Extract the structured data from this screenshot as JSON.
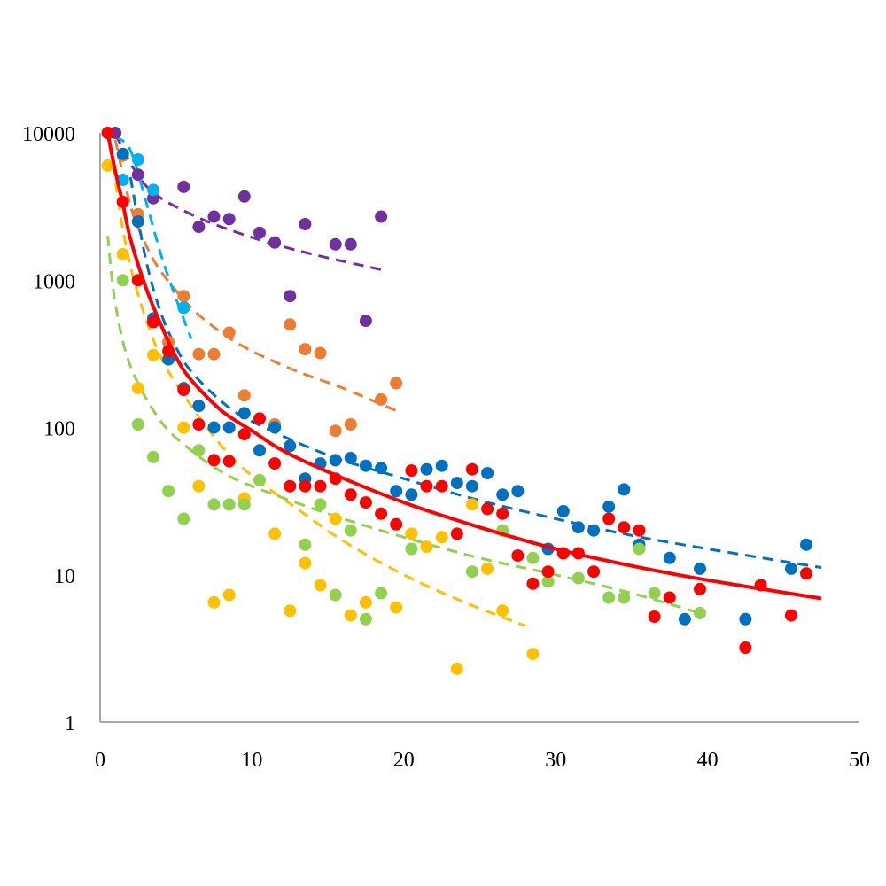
{
  "chart_data": {
    "type": "scatter",
    "title": "",
    "xlabel": "",
    "ylabel": "",
    "xlim": [
      0,
      50
    ],
    "ylim": [
      1,
      10000
    ],
    "yscale": "log",
    "x_ticks": [
      "0",
      "10",
      "20",
      "30",
      "40",
      "50"
    ],
    "y_ticks": [
      "1",
      "10",
      "100",
      "1000",
      "10000"
    ],
    "grid": false,
    "legend": "none",
    "series": [
      {
        "color": "#7030A0",
        "points": [
          [
            1,
            10000
          ],
          [
            2.5,
            5200
          ],
          [
            3.5,
            3600
          ],
          [
            5.5,
            4300
          ],
          [
            6.5,
            2300
          ],
          [
            7.5,
            2700
          ],
          [
            8.5,
            2600
          ],
          [
            9.5,
            3700
          ],
          [
            10.5,
            2100
          ],
          [
            11.5,
            1800
          ],
          [
            12.5,
            780
          ],
          [
            13.5,
            2400
          ],
          [
            15.5,
            1750
          ],
          [
            16.5,
            1750
          ],
          [
            17.5,
            530
          ],
          [
            18.5,
            2700
          ]
        ],
        "trend": [
          [
            1,
            9800
          ],
          [
            3,
            4400
          ],
          [
            6,
            2800
          ],
          [
            10,
            1950
          ],
          [
            14,
            1500
          ],
          [
            18.5,
            1180
          ]
        ]
      },
      {
        "color": "#ED7D31",
        "points": [
          [
            1.5,
            7000
          ],
          [
            2.5,
            2800
          ],
          [
            4.5,
            380
          ],
          [
            5.5,
            780
          ],
          [
            6.5,
            315
          ],
          [
            7.5,
            315
          ],
          [
            8.5,
            440
          ],
          [
            9.5,
            165
          ],
          [
            11.5,
            105
          ],
          [
            12.5,
            500
          ],
          [
            13.5,
            340
          ],
          [
            14.5,
            320
          ],
          [
            15.5,
            95
          ],
          [
            16.5,
            105
          ],
          [
            18.5,
            155
          ],
          [
            19.5,
            200
          ]
        ],
        "trend": [
          [
            1,
            9000
          ],
          [
            2,
            3200
          ],
          [
            3,
            1750
          ],
          [
            4,
            1150
          ],
          [
            6,
            650
          ],
          [
            8,
            440
          ],
          [
            10,
            330
          ],
          [
            13,
            240
          ],
          [
            16,
            185
          ],
          [
            19.5,
            130
          ]
        ]
      },
      {
        "color": "#00B0F0",
        "points": [
          [
            1.5,
            4800
          ],
          [
            2.5,
            6600
          ],
          [
            3.5,
            4100
          ],
          [
            5.5,
            650
          ]
        ],
        "trend": [
          [
            1,
            9500
          ],
          [
            2,
            7600
          ],
          [
            3,
            3500
          ],
          [
            4,
            1500
          ],
          [
            5,
            750
          ],
          [
            6,
            400
          ]
        ]
      },
      {
        "color": "#0070C0",
        "points": [
          [
            1.5,
            7200
          ],
          [
            2.5,
            2500
          ],
          [
            3.5,
            550
          ],
          [
            4.5,
            290
          ],
          [
            5.5,
            185
          ],
          [
            6.5,
            140
          ],
          [
            7.5,
            100
          ],
          [
            8.5,
            100
          ],
          [
            9.5,
            125
          ],
          [
            10.5,
            70
          ],
          [
            11.5,
            100
          ],
          [
            12.5,
            75
          ],
          [
            13.5,
            45
          ],
          [
            14.5,
            57
          ],
          [
            15.5,
            60
          ],
          [
            16.5,
            62
          ],
          [
            17.5,
            55
          ],
          [
            18.5,
            53
          ],
          [
            19.5,
            37
          ],
          [
            20.5,
            35
          ],
          [
            21.5,
            52
          ],
          [
            22.5,
            55
          ],
          [
            23.5,
            42
          ],
          [
            24.5,
            40
          ],
          [
            25.5,
            49
          ],
          [
            26.5,
            35
          ],
          [
            27.5,
            37
          ],
          [
            29.5,
            15
          ],
          [
            30.5,
            27
          ],
          [
            31.5,
            21
          ],
          [
            32.5,
            20
          ],
          [
            33.5,
            29
          ],
          [
            34.5,
            38
          ],
          [
            35.5,
            16
          ],
          [
            37.5,
            13
          ],
          [
            38.5,
            5
          ],
          [
            39.5,
            11
          ],
          [
            42.5,
            5
          ],
          [
            45.5,
            11
          ],
          [
            46.5,
            16
          ]
        ],
        "trend": [
          [
            2,
            5000
          ],
          [
            3,
            1400
          ],
          [
            4,
            600
          ],
          [
            5,
            350
          ],
          [
            6,
            240
          ],
          [
            8,
            150
          ],
          [
            10,
            110
          ],
          [
            15,
            65
          ],
          [
            20,
            45
          ],
          [
            25,
            32
          ],
          [
            30,
            24
          ],
          [
            35,
            18.5
          ],
          [
            40,
            15
          ],
          [
            47.5,
            11.2
          ]
        ]
      },
      {
        "color": "#FFC000",
        "points": [
          [
            0.5,
            6000
          ],
          [
            1.5,
            1500
          ],
          [
            2.5,
            185
          ],
          [
            3.5,
            310
          ],
          [
            5.5,
            100
          ],
          [
            6.5,
            40
          ],
          [
            7.5,
            6.5
          ],
          [
            8.5,
            7.3
          ],
          [
            9.5,
            33
          ],
          [
            11.5,
            19
          ],
          [
            12.5,
            5.7
          ],
          [
            13.5,
            12
          ],
          [
            14.5,
            8.5
          ],
          [
            15.5,
            24
          ],
          [
            16.5,
            5.3
          ],
          [
            17.5,
            6.5
          ],
          [
            19.5,
            6
          ],
          [
            20.5,
            19
          ],
          [
            21.5,
            15.5
          ],
          [
            22.5,
            18
          ],
          [
            23.5,
            2.3
          ],
          [
            24.5,
            30
          ],
          [
            25.5,
            11
          ],
          [
            26.5,
            5.7
          ],
          [
            28.5,
            2.9
          ]
        ],
        "trend": [
          [
            0.7,
            8000
          ],
          [
            1.5,
            2200
          ],
          [
            2.5,
            800
          ],
          [
            4,
            300
          ],
          [
            6,
            140
          ],
          [
            8,
            75
          ],
          [
            10,
            47
          ],
          [
            13,
            28
          ],
          [
            16,
            17
          ],
          [
            20,
            10
          ],
          [
            24,
            6.5
          ],
          [
            28,
            4.5
          ]
        ]
      },
      {
        "color": "#92D050",
        "points": [
          [
            1.5,
            1000
          ],
          [
            2.5,
            105
          ],
          [
            3.5,
            63
          ],
          [
            4.5,
            37
          ],
          [
            5.5,
            24
          ],
          [
            6.5,
            70
          ],
          [
            7.5,
            30
          ],
          [
            8.5,
            30
          ],
          [
            9.5,
            30
          ],
          [
            10.5,
            44
          ],
          [
            13.5,
            16
          ],
          [
            14.5,
            30
          ],
          [
            15.5,
            7.3
          ],
          [
            16.5,
            20
          ],
          [
            17.5,
            5
          ],
          [
            18.5,
            7.5
          ],
          [
            20.5,
            15
          ],
          [
            24.5,
            10.5
          ],
          [
            26.5,
            20
          ],
          [
            28.5,
            13
          ],
          [
            29.5,
            9
          ],
          [
            31.5,
            9.5
          ],
          [
            33.5,
            7
          ],
          [
            34.5,
            7
          ],
          [
            35.5,
            15
          ],
          [
            36.5,
            7.5
          ],
          [
            39.5,
            5.5
          ]
        ],
        "trend": [
          [
            0.5,
            2000
          ],
          [
            1,
            700
          ],
          [
            2,
            260
          ],
          [
            4,
            110
          ],
          [
            6,
            70
          ],
          [
            8,
            50
          ],
          [
            10,
            40
          ],
          [
            15,
            26
          ],
          [
            20,
            18
          ],
          [
            25,
            13
          ],
          [
            30,
            10
          ],
          [
            35,
            7.5
          ],
          [
            39.5,
            5.5
          ]
        ]
      },
      {
        "color": "#FF0000",
        "points": [
          [
            0.5,
            10000
          ],
          [
            1.5,
            3400
          ],
          [
            2.5,
            1000
          ],
          [
            3.5,
            520
          ],
          [
            4.5,
            330
          ],
          [
            5.5,
            180
          ],
          [
            6.5,
            105
          ],
          [
            7.5,
            60
          ],
          [
            8.5,
            59
          ],
          [
            9.5,
            90
          ],
          [
            10.5,
            115
          ],
          [
            11.5,
            57
          ],
          [
            12.5,
            40
          ],
          [
            13.5,
            40
          ],
          [
            14.5,
            40
          ],
          [
            15.5,
            45
          ],
          [
            16.5,
            35
          ],
          [
            17.5,
            31
          ],
          [
            18.5,
            26
          ],
          [
            19.5,
            22
          ],
          [
            20.5,
            51
          ],
          [
            21.5,
            40
          ],
          [
            22.5,
            40
          ],
          [
            23.5,
            19
          ],
          [
            24.5,
            52
          ],
          [
            25.5,
            28
          ],
          [
            26.5,
            26
          ],
          [
            27.5,
            13.5
          ],
          [
            28.5,
            8.7
          ],
          [
            29.5,
            10.5
          ],
          [
            30.5,
            14
          ],
          [
            31.5,
            14
          ],
          [
            32.5,
            10.5
          ],
          [
            33.5,
            24
          ],
          [
            34.5,
            21
          ],
          [
            35.5,
            20
          ],
          [
            36.5,
            5.2
          ],
          [
            37.5,
            7
          ],
          [
            39.5,
            8
          ],
          [
            42.5,
            3.2
          ],
          [
            43.5,
            8.5
          ],
          [
            45.5,
            5.3
          ],
          [
            46.5,
            10.2
          ]
        ],
        "trend": [
          [
            0.5,
            10000
          ],
          [
            1,
            5500
          ],
          [
            1.5,
            3300
          ],
          [
            2,
            1900
          ],
          [
            3,
            900
          ],
          [
            4,
            500
          ],
          [
            5,
            300
          ],
          [
            6,
            210
          ],
          [
            8,
            130
          ],
          [
            10,
            95
          ],
          [
            12,
            70
          ],
          [
            15,
            50
          ],
          [
            20,
            31
          ],
          [
            25,
            21
          ],
          [
            30,
            15
          ],
          [
            35,
            11.5
          ],
          [
            40,
            9.2
          ],
          [
            47.5,
            6.9
          ]
        ]
      }
    ]
  }
}
